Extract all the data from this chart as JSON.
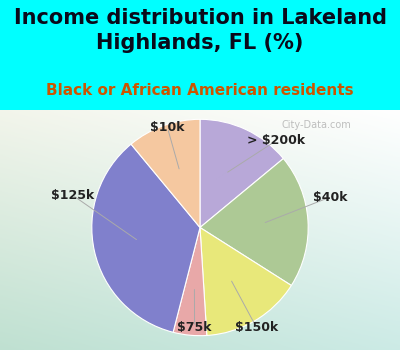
{
  "title": "Income distribution in Lakeland\nHighlands, FL (%)",
  "subtitle": "Black or African American residents",
  "labels": [
    "> $200k",
    "$40k",
    "$150k",
    "$75k",
    "$125k",
    "$10k"
  ],
  "sizes": [
    14,
    20,
    15,
    5,
    35,
    11
  ],
  "colors": [
    "#b8a8d8",
    "#adc995",
    "#e8e87a",
    "#e8a8a8",
    "#8080cc",
    "#f5c8a0"
  ],
  "startangle": 90,
  "title_fontsize": 15,
  "subtitle_fontsize": 11,
  "label_fontsize": 9,
  "bg_cyan": "#00ffff",
  "watermark": "City-Data.com",
  "chart_bg_colors": [
    "#c0dfd0",
    "#d8ede0",
    "#eaf4ee",
    "#e8f4f0",
    "#e0f0f4"
  ],
  "label_line_color": "#aaaaaa",
  "label_color": "#222222"
}
